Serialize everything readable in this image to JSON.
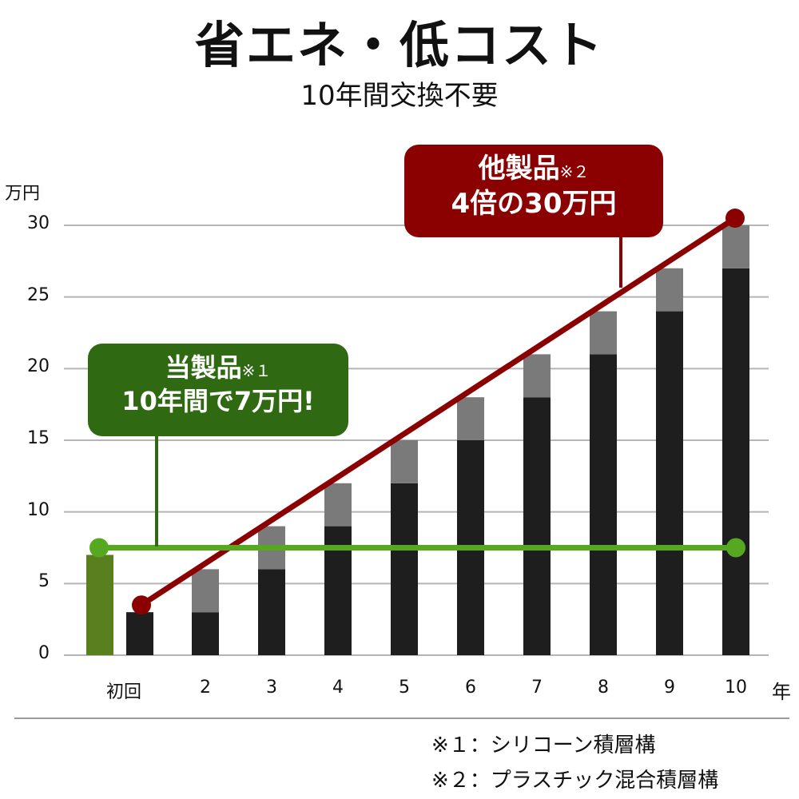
{
  "title": "省エネ・低コスト",
  "subtitle": "10年間交換不要",
  "chart_data": {
    "type": "bar",
    "unit_label": "万円",
    "x_unit_label": "年",
    "categories": [
      "初回",
      "2",
      "3",
      "4",
      "5",
      "6",
      "7",
      "8",
      "9",
      "10"
    ],
    "ylim": [
      0,
      30
    ],
    "yticks": [
      "0",
      "5",
      "10",
      "15",
      "20",
      "25",
      "30"
    ],
    "grid": true,
    "this_product_bar": {
      "category": "初回",
      "value": 7,
      "color": "#5a7f1e"
    },
    "series": [
      {
        "values": [
          3,
          3,
          6,
          9,
          12,
          15,
          18,
          21,
          24,
          27
        ],
        "color": "#1e1e1e"
      },
      {
        "values": [
          0,
          3,
          3,
          3,
          3,
          3,
          3,
          3,
          3,
          3
        ],
        "color": "#7a7a7a"
      }
    ],
    "lines": [
      {
        "points": [
          [
            "初回",
            3.5
          ],
          [
            "10",
            30.5
          ]
        ],
        "color": "#8b0000"
      },
      {
        "points": [
          [
            "初回",
            7.5
          ],
          [
            "10",
            7.5
          ]
        ],
        "color": "#56a820"
      }
    ]
  },
  "callouts": {
    "other": {
      "line1": "他製品",
      "note": "※２",
      "line2": "4倍の30万円"
    },
    "ours": {
      "line1": "当製品",
      "note": "※１",
      "line2": "10年間で7万円!"
    }
  },
  "footnotes": [
    "※１：シリコーン積層構",
    "※２：プラスチック混合積層構"
  ]
}
